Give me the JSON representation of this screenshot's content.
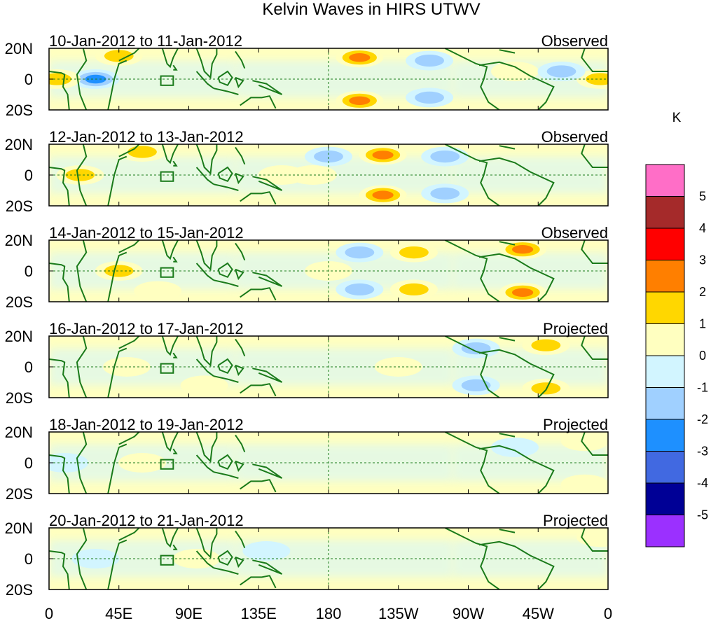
{
  "chart_data": {
    "type": "heatmap",
    "title": "Kelvin Waves in HIRS UTWV",
    "units_label": "K",
    "x_ticks": [
      "0",
      "45E",
      "90E",
      "135E",
      "180",
      "135W",
      "90W",
      "45W",
      "0"
    ],
    "x_range_deg": [
      0,
      360
    ],
    "y_ticks": [
      "20N",
      "0",
      "20S"
    ],
    "y_range_deg": [
      -20,
      20
    ],
    "colorbar": {
      "labels": [
        "5",
        "4",
        "3",
        "2",
        "1",
        "0",
        "-1",
        "-2",
        "-3",
        "-4",
        "-5"
      ],
      "colors": [
        "#ff6ec7",
        "#a52a2a",
        "#ff0000",
        "#ff7f00",
        "#ffd700",
        "#ffffc0",
        "#d2f5ff",
        "#a0d0ff",
        "#1e90ff",
        "#4169e1",
        "#000096",
        "#9b30ff"
      ]
    },
    "panels": [
      {
        "date_range": "10-Jan-2012 to 11-Jan-2012",
        "status": "Observed",
        "features": [
          {
            "lon": 200,
            "lat": 14,
            "value": 3
          },
          {
            "lon": 200,
            "lat": -14,
            "value": 3
          },
          {
            "lon": 245,
            "lat": 12,
            "value": -2
          },
          {
            "lon": 245,
            "lat": -12,
            "value": -2
          },
          {
            "lon": 30,
            "lat": 0,
            "value": -3
          },
          {
            "lon": 5,
            "lat": 0,
            "value": 2
          },
          {
            "lon": 45,
            "lat": 15,
            "value": 2
          },
          {
            "lon": 355,
            "lat": 0,
            "value": 2
          },
          {
            "lon": 300,
            "lat": 5,
            "value": 1
          },
          {
            "lon": 330,
            "lat": 5,
            "value": -2
          }
        ]
      },
      {
        "date_range": "12-Jan-2012 to 13-Jan-2012",
        "status": "Observed",
        "features": [
          {
            "lon": 215,
            "lat": 13,
            "value": 3
          },
          {
            "lon": 215,
            "lat": -13,
            "value": 3
          },
          {
            "lon": 180,
            "lat": 12,
            "value": -2
          },
          {
            "lon": 255,
            "lat": 12,
            "value": -2
          },
          {
            "lon": 255,
            "lat": -12,
            "value": -2
          },
          {
            "lon": 20,
            "lat": 0,
            "value": 2
          },
          {
            "lon": 60,
            "lat": 15,
            "value": 2
          },
          {
            "lon": 150,
            "lat": 0,
            "value": 1
          },
          {
            "lon": 170,
            "lat": 0,
            "value": 1
          }
        ]
      },
      {
        "date_range": "14-Jan-2012 to 15-Jan-2012",
        "status": "Observed",
        "features": [
          {
            "lon": 235,
            "lat": 12,
            "value": 2
          },
          {
            "lon": 235,
            "lat": -12,
            "value": 2
          },
          {
            "lon": 200,
            "lat": 12,
            "value": -2
          },
          {
            "lon": 200,
            "lat": -12,
            "value": -2
          },
          {
            "lon": 305,
            "lat": 14,
            "value": 3
          },
          {
            "lon": 305,
            "lat": -14,
            "value": 3
          },
          {
            "lon": 45,
            "lat": 0,
            "value": 2
          },
          {
            "lon": 70,
            "lat": -13,
            "value": 1
          },
          {
            "lon": 180,
            "lat": 0,
            "value": 1
          }
        ]
      },
      {
        "date_range": "16-Jan-2012 to 17-Jan-2012",
        "status": "Projected",
        "features": [
          {
            "lon": 320,
            "lat": 14,
            "value": 2
          },
          {
            "lon": 320,
            "lat": -14,
            "value": 2
          },
          {
            "lon": 275,
            "lat": 12,
            "value": -2
          },
          {
            "lon": 275,
            "lat": -12,
            "value": -2
          },
          {
            "lon": 225,
            "lat": 0,
            "value": 1
          },
          {
            "lon": 50,
            "lat": 0,
            "value": 1
          },
          {
            "lon": 100,
            "lat": -12,
            "value": 1
          }
        ]
      },
      {
        "date_range": "18-Jan-2012 to 19-Jan-2012",
        "status": "Projected",
        "features": [
          {
            "lon": 60,
            "lat": 0,
            "value": 1
          },
          {
            "lon": 345,
            "lat": 14,
            "value": 1
          },
          {
            "lon": 345,
            "lat": -14,
            "value": 1
          },
          {
            "lon": 300,
            "lat": 10,
            "value": -1
          },
          {
            "lon": 10,
            "lat": 0,
            "value": -1
          }
        ]
      },
      {
        "date_range": "20-Jan-2012 to 21-Jan-2012",
        "status": "Projected",
        "features": [
          {
            "lon": 95,
            "lat": 0,
            "value": 1
          },
          {
            "lon": 355,
            "lat": 14,
            "value": 1
          },
          {
            "lon": 140,
            "lat": 5,
            "value": -1
          },
          {
            "lon": 30,
            "lat": 0,
            "value": -1
          }
        ]
      }
    ]
  }
}
